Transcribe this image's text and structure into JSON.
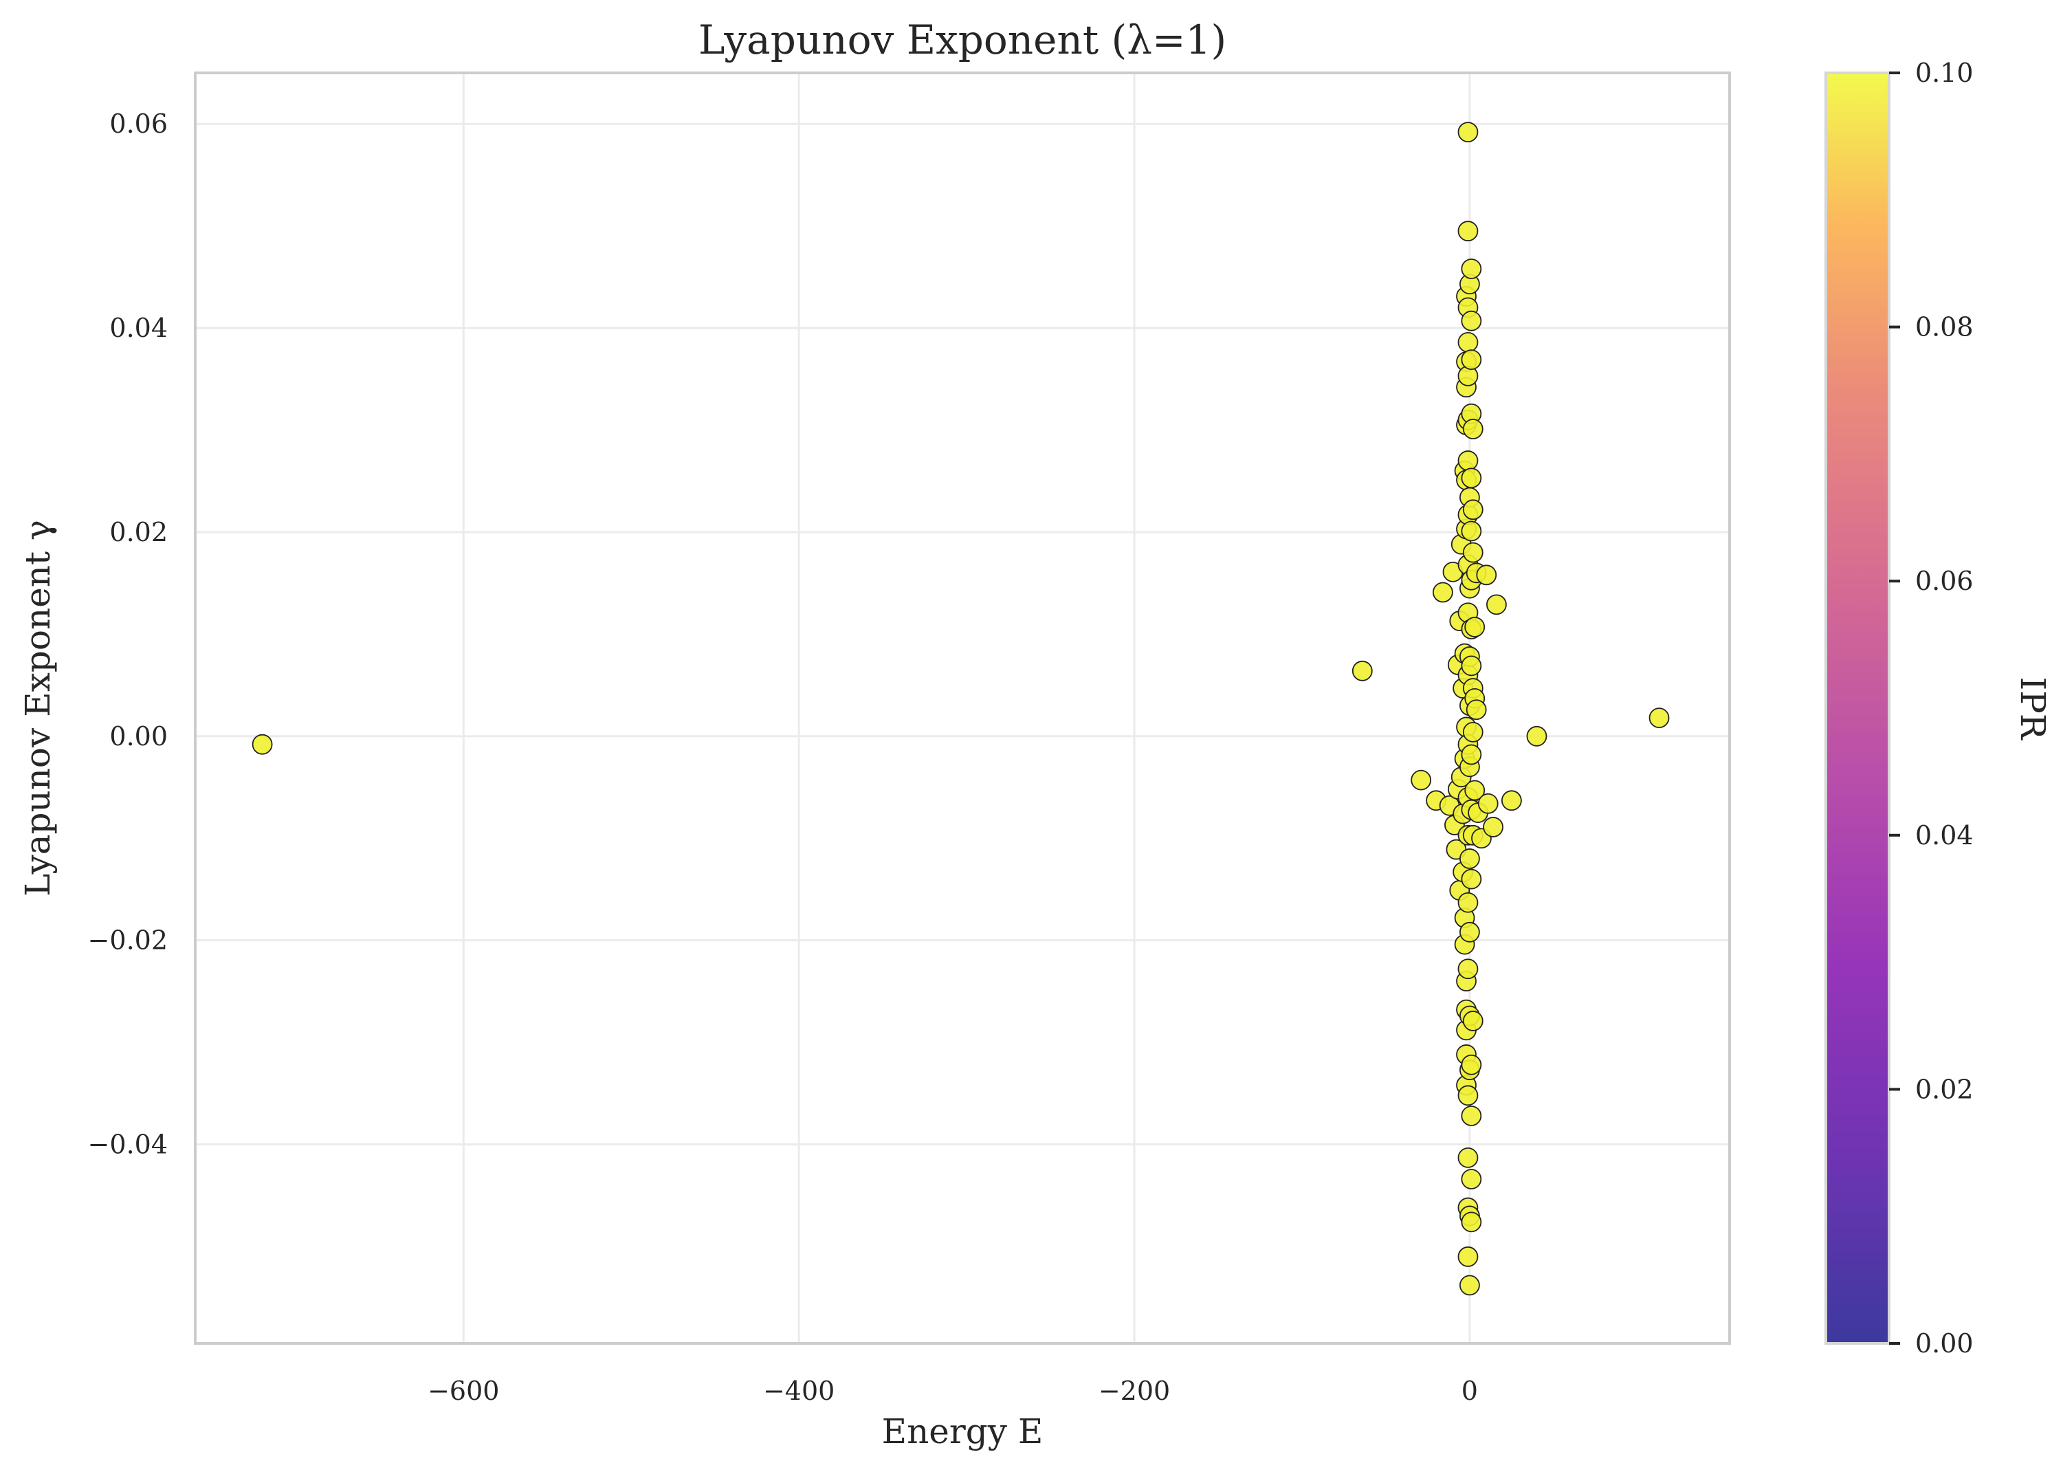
{
  "chart_data": {
    "type": "scatter",
    "title": "Lyapunov Exponent (λ=1)",
    "xlabel": "Energy E",
    "ylabel": "Lyapunov Exponent γ",
    "xlim": [
      -760,
      155
    ],
    "ylim": [
      -0.0595,
      0.065
    ],
    "xticks": [
      -600,
      -400,
      -200,
      0
    ],
    "xtick_labels": [
      "−600",
      "−400",
      "−200",
      "0"
    ],
    "yticks": [
      -0.04,
      -0.02,
      0.0,
      0.02,
      0.04,
      0.06
    ],
    "ytick_labels": [
      "−0.04",
      "−0.02",
      "0.00",
      "0.02",
      "0.04",
      "0.06"
    ],
    "grid": true,
    "colorbar": {
      "label": "IPR",
      "range": [
        0.0,
        0.1
      ],
      "ticks": [
        0.0,
        0.02,
        0.04,
        0.06,
        0.08,
        0.1
      ],
      "tick_labels": [
        "0.00",
        "0.02",
        "0.04",
        "0.06",
        "0.08",
        "0.10"
      ],
      "colormap": "plasma"
    },
    "marker_color": "#f0f032",
    "marker_edge_color": "#222222",
    "points": [
      {
        "x": -720,
        "y": -0.0008
      },
      {
        "x": -64,
        "y": 0.0064
      },
      {
        "x": -29,
        "y": -0.0043
      },
      {
        "x": -20,
        "y": -0.0063
      },
      {
        "x": -16,
        "y": 0.0141
      },
      {
        "x": -12,
        "y": -0.0068
      },
      {
        "x": -10,
        "y": 0.0161
      },
      {
        "x": -9,
        "y": -0.0087
      },
      {
        "x": -8,
        "y": -0.0111
      },
      {
        "x": -7,
        "y": 0.007
      },
      {
        "x": -7,
        "y": -0.0052
      },
      {
        "x": -6,
        "y": 0.0113
      },
      {
        "x": -6,
        "y": -0.0151
      },
      {
        "x": -5,
        "y": 0.0188
      },
      {
        "x": -5,
        "y": -0.004
      },
      {
        "x": -4,
        "y": 0.0047
      },
      {
        "x": -4,
        "y": -0.0076
      },
      {
        "x": -4,
        "y": -0.0133
      },
      {
        "x": -3,
        "y": 0.026
      },
      {
        "x": -3,
        "y": 0.0081
      },
      {
        "x": -3,
        "y": -0.0022
      },
      {
        "x": -3,
        "y": -0.0178
      },
      {
        "x": -3,
        "y": -0.0204
      },
      {
        "x": -2,
        "y": 0.0431
      },
      {
        "x": -2,
        "y": 0.0367
      },
      {
        "x": -2,
        "y": 0.0342
      },
      {
        "x": -2,
        "y": 0.0305
      },
      {
        "x": -2,
        "y": 0.0251
      },
      {
        "x": -2,
        "y": 0.0203
      },
      {
        "x": -2,
        "y": 0.0009
      },
      {
        "x": -2,
        "y": -0.024
      },
      {
        "x": -2,
        "y": -0.0268
      },
      {
        "x": -2,
        "y": -0.0288
      },
      {
        "x": -2,
        "y": -0.0312
      },
      {
        "x": -2,
        "y": -0.0342
      },
      {
        "x": -1,
        "y": 0.0592
      },
      {
        "x": -1,
        "y": 0.0495
      },
      {
        "x": -1,
        "y": 0.042
      },
      {
        "x": -1,
        "y": 0.0386
      },
      {
        "x": -1,
        "y": 0.0353
      },
      {
        "x": -1,
        "y": 0.031
      },
      {
        "x": -1,
        "y": 0.027
      },
      {
        "x": -1,
        "y": 0.0217
      },
      {
        "x": -1,
        "y": 0.0168
      },
      {
        "x": -1,
        "y": 0.0121
      },
      {
        "x": -1,
        "y": 0.006
      },
      {
        "x": -1,
        "y": -0.0008
      },
      {
        "x": -1,
        "y": -0.006
      },
      {
        "x": -1,
        "y": -0.0097
      },
      {
        "x": -1,
        "y": -0.0163
      },
      {
        "x": -1,
        "y": -0.0228
      },
      {
        "x": -1,
        "y": -0.0352
      },
      {
        "x": -1,
        "y": -0.0413
      },
      {
        "x": -1,
        "y": -0.0462
      },
      {
        "x": -1,
        "y": -0.051
      },
      {
        "x": 0,
        "y": 0.0443
      },
      {
        "x": 0,
        "y": 0.0234
      },
      {
        "x": 0,
        "y": 0.0145
      },
      {
        "x": 0,
        "y": 0.0078
      },
      {
        "x": 0,
        "y": 0.003
      },
      {
        "x": 0,
        "y": -0.003
      },
      {
        "x": 0,
        "y": -0.012
      },
      {
        "x": 0,
        "y": -0.0192
      },
      {
        "x": 0,
        "y": -0.0274
      },
      {
        "x": 0,
        "y": -0.0327
      },
      {
        "x": 0,
        "y": -0.047
      },
      {
        "x": 0,
        "y": -0.0538
      },
      {
        "x": 1,
        "y": 0.0458
      },
      {
        "x": 1,
        "y": 0.0407
      },
      {
        "x": 1,
        "y": 0.0369
      },
      {
        "x": 1,
        "y": 0.0316
      },
      {
        "x": 1,
        "y": 0.0253
      },
      {
        "x": 1,
        "y": 0.0201
      },
      {
        "x": 1,
        "y": 0.0153
      },
      {
        "x": 1,
        "y": 0.0105
      },
      {
        "x": 1,
        "y": 0.0069
      },
      {
        "x": 1,
        "y": -0.0018
      },
      {
        "x": 1,
        "y": -0.0072
      },
      {
        "x": 1,
        "y": -0.014
      },
      {
        "x": 1,
        "y": -0.0322
      },
      {
        "x": 1,
        "y": -0.0372
      },
      {
        "x": 1,
        "y": -0.0434
      },
      {
        "x": 1,
        "y": -0.0476
      },
      {
        "x": 2,
        "y": 0.0301
      },
      {
        "x": 2,
        "y": 0.0222
      },
      {
        "x": 2,
        "y": 0.018
      },
      {
        "x": 2,
        "y": 0.0047
      },
      {
        "x": 2,
        "y": 0.0004
      },
      {
        "x": 2,
        "y": -0.0097
      },
      {
        "x": 2,
        "y": -0.0279
      },
      {
        "x": 3,
        "y": 0.0107
      },
      {
        "x": 3,
        "y": 0.0037
      },
      {
        "x": 3,
        "y": -0.0053
      },
      {
        "x": 4,
        "y": 0.016
      },
      {
        "x": 4,
        "y": 0.0026
      },
      {
        "x": 5,
        "y": -0.0075
      },
      {
        "x": 7,
        "y": -0.01
      },
      {
        "x": 10,
        "y": 0.0158
      },
      {
        "x": 11,
        "y": -0.0066
      },
      {
        "x": 14,
        "y": -0.0089
      },
      {
        "x": 16,
        "y": 0.0129
      },
      {
        "x": 25,
        "y": -0.0063
      },
      {
        "x": 40,
        "y": 0.0
      },
      {
        "x": 113,
        "y": 0.0018
      }
    ]
  }
}
